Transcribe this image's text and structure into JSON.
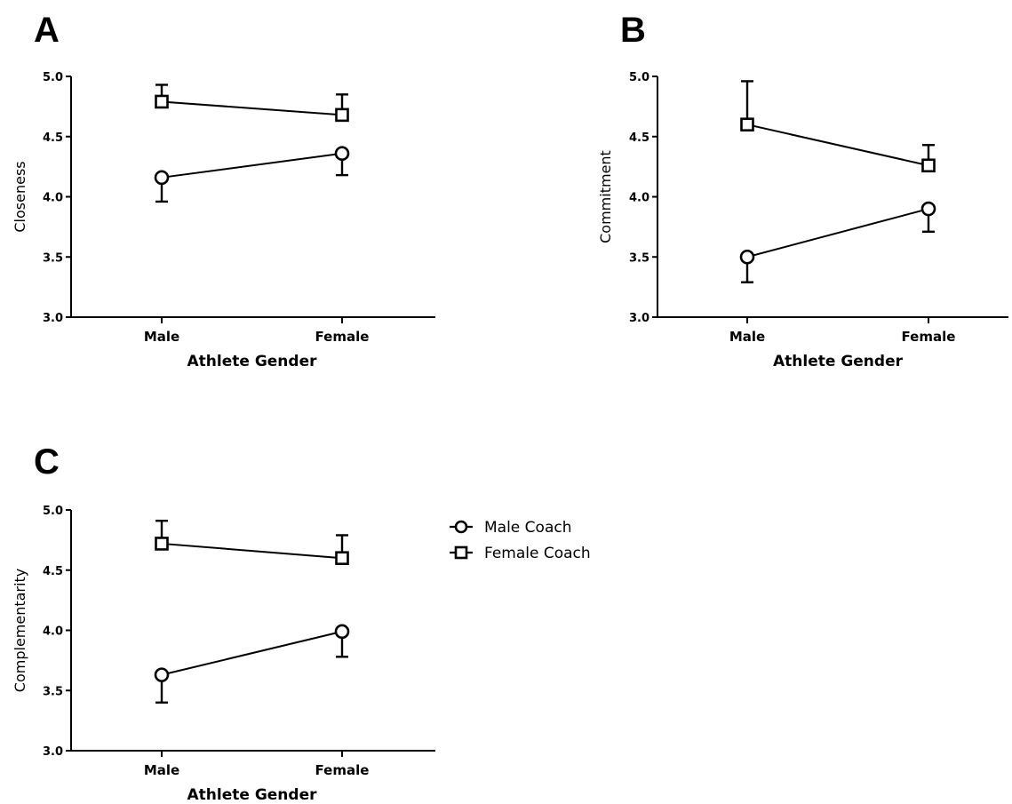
{
  "chart_data": [
    {
      "panel": "A",
      "type": "line",
      "categories": [
        "Male",
        "Female"
      ],
      "xlabel": "Athlete Gender",
      "ylabel": "Closeness",
      "ylim": [
        3.0,
        5.0
      ],
      "yticks": [
        "3.0",
        "3.5",
        "4.0",
        "4.5",
        "5.0"
      ],
      "series": [
        {
          "name": "Male Coach",
          "marker": "circle",
          "values": [
            4.16,
            4.36
          ],
          "error_low": [
            3.96,
            4.18
          ],
          "error_high": [
            4.16,
            4.36
          ]
        },
        {
          "name": "Female Coach",
          "marker": "square",
          "values": [
            4.79,
            4.68
          ],
          "error_low": [
            4.79,
            4.68
          ],
          "error_high": [
            4.93,
            4.85
          ]
        }
      ]
    },
    {
      "panel": "B",
      "type": "line",
      "categories": [
        "Male",
        "Female"
      ],
      "xlabel": "Athlete Gender",
      "ylabel": "Commitment",
      "ylim": [
        3.0,
        5.0
      ],
      "yticks": [
        "3.0",
        "3.5",
        "4.0",
        "4.5",
        "5.0"
      ],
      "series": [
        {
          "name": "Male Coach",
          "marker": "circle",
          "values": [
            3.5,
            3.9
          ],
          "error_low": [
            3.29,
            3.71
          ],
          "error_high": [
            3.5,
            3.9
          ]
        },
        {
          "name": "Female Coach",
          "marker": "square",
          "values": [
            4.6,
            4.26
          ],
          "error_low": [
            4.6,
            4.26
          ],
          "error_high": [
            4.96,
            4.43
          ]
        }
      ]
    },
    {
      "panel": "C",
      "type": "line",
      "categories": [
        "Male",
        "Female"
      ],
      "xlabel": "Athlete Gender",
      "ylabel": "Complementarity",
      "ylim": [
        3.0,
        5.0
      ],
      "yticks": [
        "3.0",
        "3.5",
        "4.0",
        "4.5",
        "5.0"
      ],
      "series": [
        {
          "name": "Male Coach",
          "marker": "circle",
          "values": [
            3.63,
            3.99
          ],
          "error_low": [
            3.4,
            3.78
          ],
          "error_high": [
            3.63,
            3.99
          ]
        },
        {
          "name": "Female Coach",
          "marker": "square",
          "values": [
            4.72,
            4.6
          ],
          "error_low": [
            4.72,
            4.6
          ],
          "error_high": [
            4.91,
            4.79
          ]
        }
      ]
    }
  ],
  "legend": {
    "placement": "right of panel C",
    "items": [
      {
        "label": "Male Coach",
        "marker": "circle"
      },
      {
        "label": "Female Coach",
        "marker": "square"
      }
    ]
  }
}
